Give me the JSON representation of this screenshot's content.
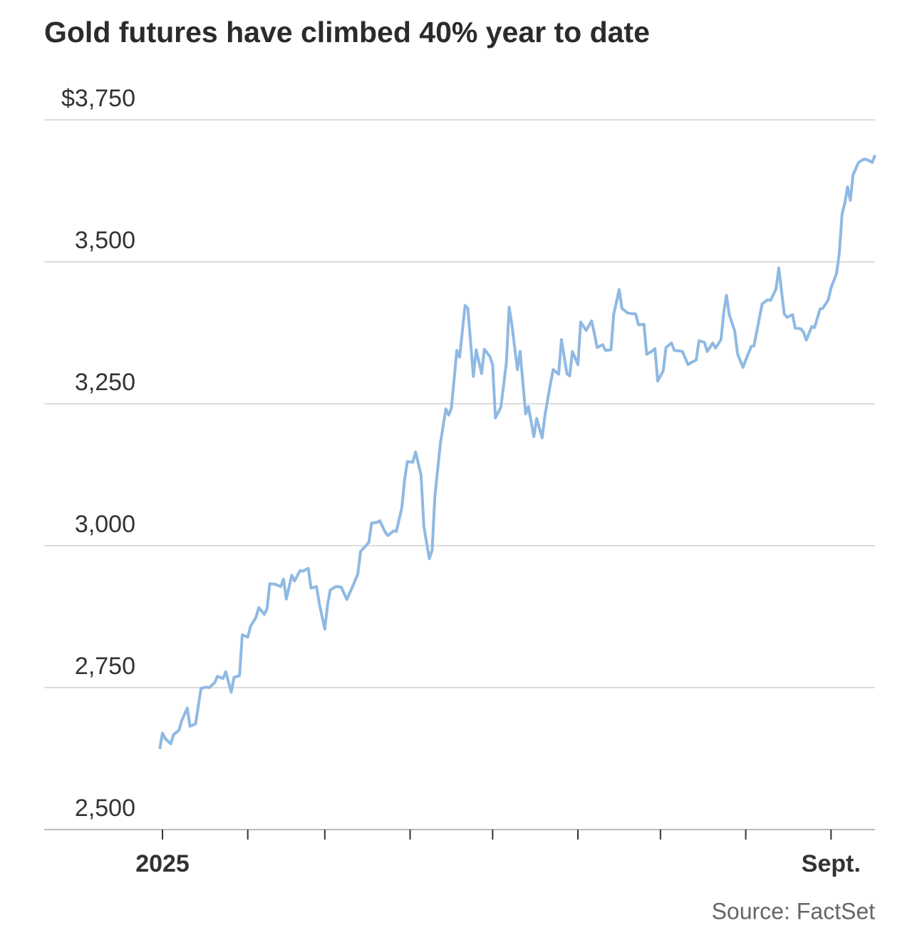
{
  "chart_data": {
    "type": "line",
    "title": "Gold futures have climbed 40% year to date",
    "source": "Source: FactSet",
    "x": [
      -1,
      0,
      1,
      3,
      4,
      6,
      7,
      9,
      10,
      12,
      13,
      14,
      16,
      17,
      19,
      20,
      22,
      23,
      25,
      26,
      28,
      29,
      31,
      32,
      34,
      35,
      37,
      38,
      39,
      41,
      43,
      44,
      45,
      47,
      48,
      50,
      51,
      53,
      54,
      56,
      57,
      59,
      60,
      61,
      63,
      65,
      66,
      67,
      69,
      71,
      72,
      74,
      75,
      76,
      78,
      79,
      81,
      82,
      84,
      85,
      87,
      88,
      89,
      91,
      92,
      94,
      95,
      97,
      98,
      99,
      101,
      103,
      104,
      105,
      107,
      108,
      110,
      111,
      113,
      114,
      116,
      117,
      119,
      120,
      121,
      123,
      125,
      126,
      127,
      129,
      130,
      132,
      133,
      135,
      136,
      138,
      139,
      141,
      142,
      144,
      145,
      147,
      148,
      149,
      151,
      152,
      154,
      156,
      157,
      158,
      160,
      161,
      163,
      164,
      166,
      167,
      169,
      170,
      172,
      173,
      175,
      176,
      178,
      179,
      180,
      182,
      183,
      185,
      186,
      188,
      189,
      191,
      192,
      194,
      195,
      197,
      198,
      200,
      201,
      203,
      204,
      205,
      206,
      208,
      209,
      211,
      212,
      214,
      215,
      217,
      218,
      220,
      221,
      223,
      224,
      226,
      227,
      229,
      230,
      232,
      233,
      234,
      236,
      237,
      239,
      240,
      242,
      243,
      245,
      246,
      247,
      248,
      249,
      250,
      251,
      253,
      255,
      256,
      258,
      259
    ],
    "values": [
      2642,
      2670,
      2660,
      2651,
      2667,
      2675,
      2692,
      2714,
      2682,
      2686,
      2717,
      2749,
      2751,
      2750,
      2759,
      2770,
      2766,
      2778,
      2742,
      2768,
      2771,
      2843,
      2839,
      2858,
      2874,
      2891,
      2879,
      2889,
      2933,
      2932,
      2928,
      2941,
      2906,
      2948,
      2938,
      2956,
      2955,
      2960,
      2925,
      2928,
      2898,
      2853,
      2896,
      2922,
      2928,
      2927,
      2916,
      2905,
      2927,
      2950,
      2990,
      3000,
      3006,
      3040,
      3041,
      3044,
      3023,
      3018,
      3026,
      3025,
      3067,
      3116,
      3148,
      3147,
      3165,
      3124,
      3034,
      2977,
      2992,
      3087,
      3180,
      3241,
      3230,
      3242,
      3344,
      3332,
      3423,
      3418,
      3298,
      3345,
      3303,
      3346,
      3333,
      3319,
      3225,
      3244,
      3322,
      3420,
      3389,
      3310,
      3342,
      3232,
      3245,
      3192,
      3224,
      3190,
      3229,
      3285,
      3310,
      3302,
      3363,
      3303,
      3299,
      3342,
      3319,
      3394,
      3379,
      3396,
      3373,
      3349,
      3354,
      3344,
      3345,
      3407,
      3451,
      3418,
      3410,
      3409,
      3408,
      3389,
      3390,
      3337,
      3343,
      3347,
      3290,
      3308,
      3349,
      3357,
      3344,
      3343,
      3342,
      3319,
      3322,
      3327,
      3361,
      3358,
      3342,
      3357,
      3348,
      3363,
      3410,
      3441,
      3407,
      3378,
      3338,
      3314,
      3327,
      3351,
      3352,
      3402,
      3426,
      3433,
      3432,
      3452,
      3489,
      3408,
      3402,
      3407,
      3383,
      3382,
      3376,
      3362,
      3386,
      3384,
      3417,
      3418,
      3433,
      3454,
      3479,
      3515,
      3584,
      3603,
      3632,
      3608,
      3653,
      3675,
      3681,
      3680,
      3675,
      3688
    ],
    "color": "#8fb9e3",
    "xlim": [
      -43,
      259
    ],
    "xticks": [
      {
        "value": 0,
        "label": "2025"
      },
      {
        "value": 243,
        "label": "Sept."
      }
    ],
    "xminorticks": [
      31,
      59,
      90,
      120,
      151,
      181,
      212
    ],
    "ylim": [
      2500,
      3750
    ],
    "yticks": [
      {
        "value": 2500,
        "label": "2,500"
      },
      {
        "value": 2750,
        "label": "2,750"
      },
      {
        "value": 3000,
        "label": "3,000"
      },
      {
        "value": 3250,
        "label": "3,250"
      },
      {
        "value": 3500,
        "label": "3,500"
      },
      {
        "value": 3750,
        "label": "$3,750"
      }
    ],
    "grid": true
  }
}
